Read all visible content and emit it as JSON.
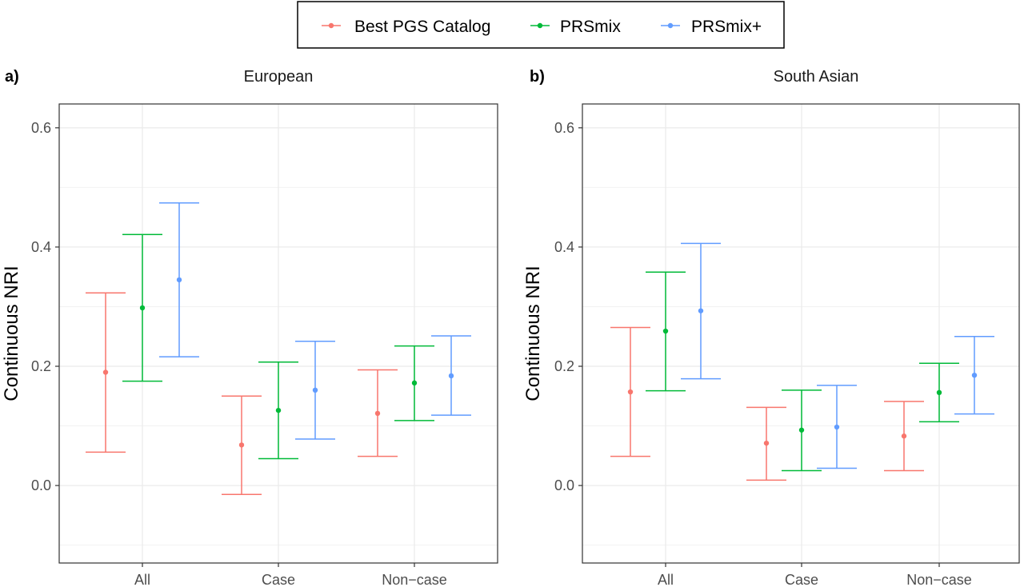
{
  "legend": {
    "items": [
      {
        "label": "Best PGS Catalog",
        "color": "#F8766D"
      },
      {
        "label": "PRSmix",
        "color": "#00BA38"
      },
      {
        "label": "PRSmix+",
        "color": "#619CFF"
      }
    ]
  },
  "chart_data": [
    {
      "type": "errorbar",
      "tag": "a)",
      "title": "European",
      "xlabel": "",
      "ylabel": "Continuous NRI",
      "ylim": [
        -0.13,
        0.64
      ],
      "yticks": [
        "0.0",
        "0.2",
        "0.4",
        "0.6"
      ],
      "categories": [
        "All",
        "Case",
        "Non−case"
      ],
      "grid": true,
      "series": [
        {
          "name": "Best PGS Catalog",
          "color": "#F8766D",
          "values": [
            0.19,
            0.068,
            0.121
          ],
          "lower": [
            0.056,
            -0.015,
            0.049
          ],
          "upper": [
            0.323,
            0.15,
            0.194
          ]
        },
        {
          "name": "PRSmix",
          "color": "#00BA38",
          "values": [
            0.298,
            0.126,
            0.172
          ],
          "lower": [
            0.175,
            0.045,
            0.109
          ],
          "upper": [
            0.421,
            0.207,
            0.234
          ]
        },
        {
          "name": "PRSmix+",
          "color": "#619CFF",
          "values": [
            0.345,
            0.16,
            0.184
          ],
          "lower": [
            0.216,
            0.078,
            0.118
          ],
          "upper": [
            0.474,
            0.242,
            0.251
          ]
        }
      ]
    },
    {
      "type": "errorbar",
      "tag": "b)",
      "title": "South Asian",
      "xlabel": "",
      "ylabel": "Continuous NRI",
      "ylim": [
        -0.13,
        0.64
      ],
      "yticks": [
        "0.0",
        "0.2",
        "0.4",
        "0.6"
      ],
      "categories": [
        "All",
        "Case",
        "Non−case"
      ],
      "grid": true,
      "series": [
        {
          "name": "Best PGS Catalog",
          "color": "#F8766D",
          "values": [
            0.157,
            0.071,
            0.083
          ],
          "lower": [
            0.049,
            0.009,
            0.025
          ],
          "upper": [
            0.265,
            0.131,
            0.141
          ]
        },
        {
          "name": "PRSmix",
          "color": "#00BA38",
          "values": [
            0.259,
            0.093,
            0.156
          ],
          "lower": [
            0.159,
            0.025,
            0.107
          ],
          "upper": [
            0.358,
            0.16,
            0.205
          ]
        },
        {
          "name": "PRSmix+",
          "color": "#619CFF",
          "values": [
            0.293,
            0.098,
            0.185
          ],
          "lower": [
            0.179,
            0.029,
            0.12
          ],
          "upper": [
            0.406,
            0.168,
            0.25
          ]
        }
      ]
    }
  ]
}
